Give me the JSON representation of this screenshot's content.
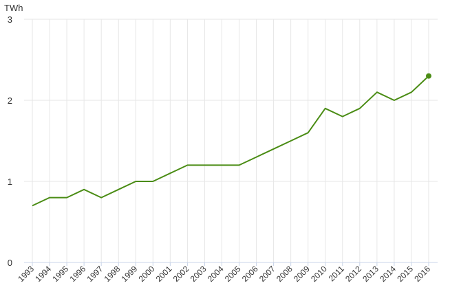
{
  "chart_data": {
    "type": "line",
    "y_unit": "TWh",
    "x": [
      "1993",
      "1994",
      "1995",
      "1996",
      "1997",
      "1998",
      "1999",
      "2000",
      "2001",
      "2002",
      "2003",
      "2004",
      "2005",
      "2006",
      "2007",
      "2008",
      "2009",
      "2010",
      "2011",
      "2012",
      "2013",
      "2014",
      "2015",
      "2016"
    ],
    "series": [
      {
        "values": [
          0.7,
          0.8,
          0.8,
          0.9,
          0.8,
          0.9,
          1.0,
          1.0,
          1.1,
          1.2,
          1.2,
          1.2,
          1.2,
          1.3,
          1.4,
          1.5,
          1.6,
          1.9,
          1.8,
          1.9,
          2.1,
          2.0,
          2.1,
          2.3
        ],
        "color": "#4a8c14"
      }
    ],
    "ylim": [
      0,
      3
    ],
    "yticks": [
      "0",
      "1",
      "2",
      "3"
    ],
    "grid": true,
    "last_point_marker": true
  }
}
